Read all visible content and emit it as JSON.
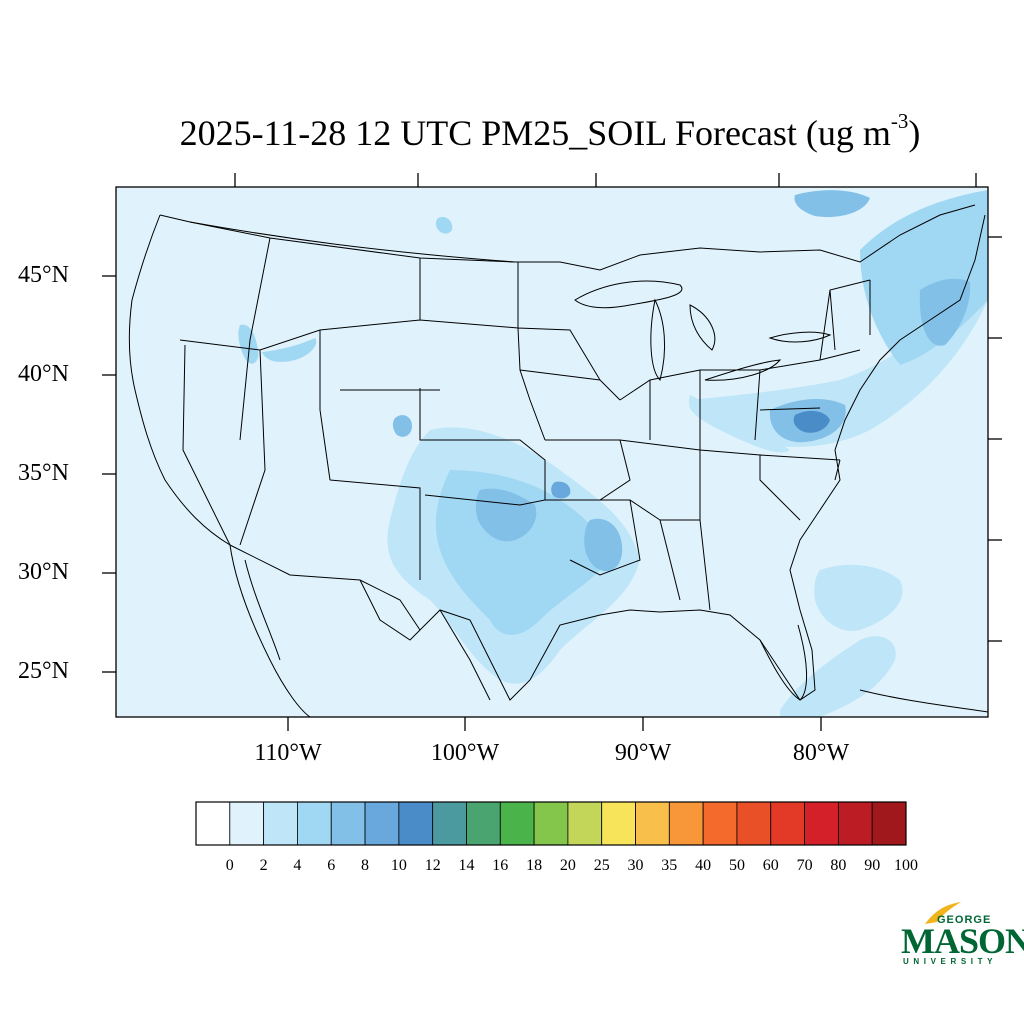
{
  "title": {
    "main": "2025-11-28 12 UTC PM25_SOIL Forecast (ug m",
    "superscript": "-3",
    "close": ")"
  },
  "axes": {
    "lat_labels": [
      "45°N",
      "40°N",
      "35°N",
      "30°N",
      "25°N"
    ],
    "lon_labels": [
      "110°W",
      "100°W",
      "90°W",
      "80°W"
    ]
  },
  "colorbar": {
    "labels": [
      "0",
      "2",
      "4",
      "6",
      "8",
      "10",
      "12",
      "14",
      "16",
      "18",
      "20",
      "25",
      "30",
      "35",
      "40",
      "50",
      "60",
      "70",
      "80",
      "90",
      "100"
    ],
    "colors": [
      "#ffffff",
      "#e0f3fc",
      "#bfe6f8",
      "#a0d8f4",
      "#82c0e8",
      "#68a8dc",
      "#4a8cc8",
      "#4a9aa0",
      "#4aa470",
      "#4ab44a",
      "#84c64c",
      "#c4d65a",
      "#f8e45a",
      "#f8c04a",
      "#f8963a",
      "#f46a2c",
      "#ea5028",
      "#e23a26",
      "#d42028",
      "#bc1c24",
      "#a0181c"
    ]
  },
  "map": {
    "background_color": "#e0f3fc",
    "boundary_color": "#000000"
  },
  "logo": {
    "line1": "GEORGE",
    "line2": "MASON",
    "line3": "UNIVERSITY",
    "color": "#006633",
    "accent_color": "#f2b41c"
  }
}
